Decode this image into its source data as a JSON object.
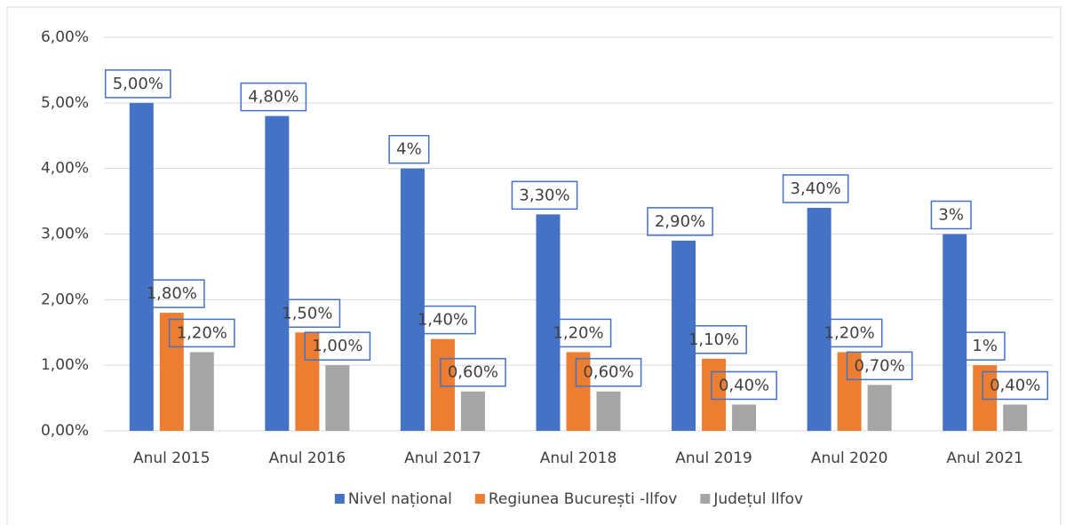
{
  "chart_data": {
    "type": "bar",
    "categories": [
      "Anul 2015",
      "Anul 2016",
      "Anul 2017",
      "Anul 2018",
      "Anul 2019",
      "Anul 2020",
      "Anul 2021"
    ],
    "series": [
      {
        "name": "Nivel național",
        "color": "#4472c4",
        "values": [
          5,
          4.8,
          4,
          3.3,
          2.9,
          3.4,
          3
        ],
        "value_labels": [
          "5,00%",
          "4,80%",
          "4%",
          "3,30%",
          "2,90%",
          "3,40%",
          "3%"
        ]
      },
      {
        "name": "Regiunea București -Ilfov",
        "color": "#ed7d31",
        "values": [
          1.8,
          1.5,
          1.4,
          1.2,
          1.1,
          1.2,
          1
        ],
        "value_labels": [
          "1,80%",
          "1,50%",
          "1,40%",
          "1,20%",
          "1,10%",
          "1,20%",
          "1%"
        ]
      },
      {
        "name": "Județul Ilfov",
        "color": "#a5a5a5",
        "values": [
          1.2,
          1.0,
          0.6,
          0.6,
          0.4,
          0.7,
          0.4
        ],
        "value_labels": [
          "1,20%",
          "1,00%",
          "0,60%",
          "0,60%",
          "0,40%",
          "0,70%",
          "0,40%"
        ]
      }
    ],
    "ylim": [
      0,
      6
    ],
    "yticks": [
      {
        "value": 0,
        "label": "0,00%"
      },
      {
        "value": 1,
        "label": "1,00%"
      },
      {
        "value": 2,
        "label": "2,00%"
      },
      {
        "value": 3,
        "label": "3,00%"
      },
      {
        "value": 4,
        "label": "4,00%"
      },
      {
        "value": 5,
        "label": "5,00%"
      },
      {
        "value": 6,
        "label": "6,00%"
      }
    ],
    "grid": true,
    "legend": "bottom"
  }
}
